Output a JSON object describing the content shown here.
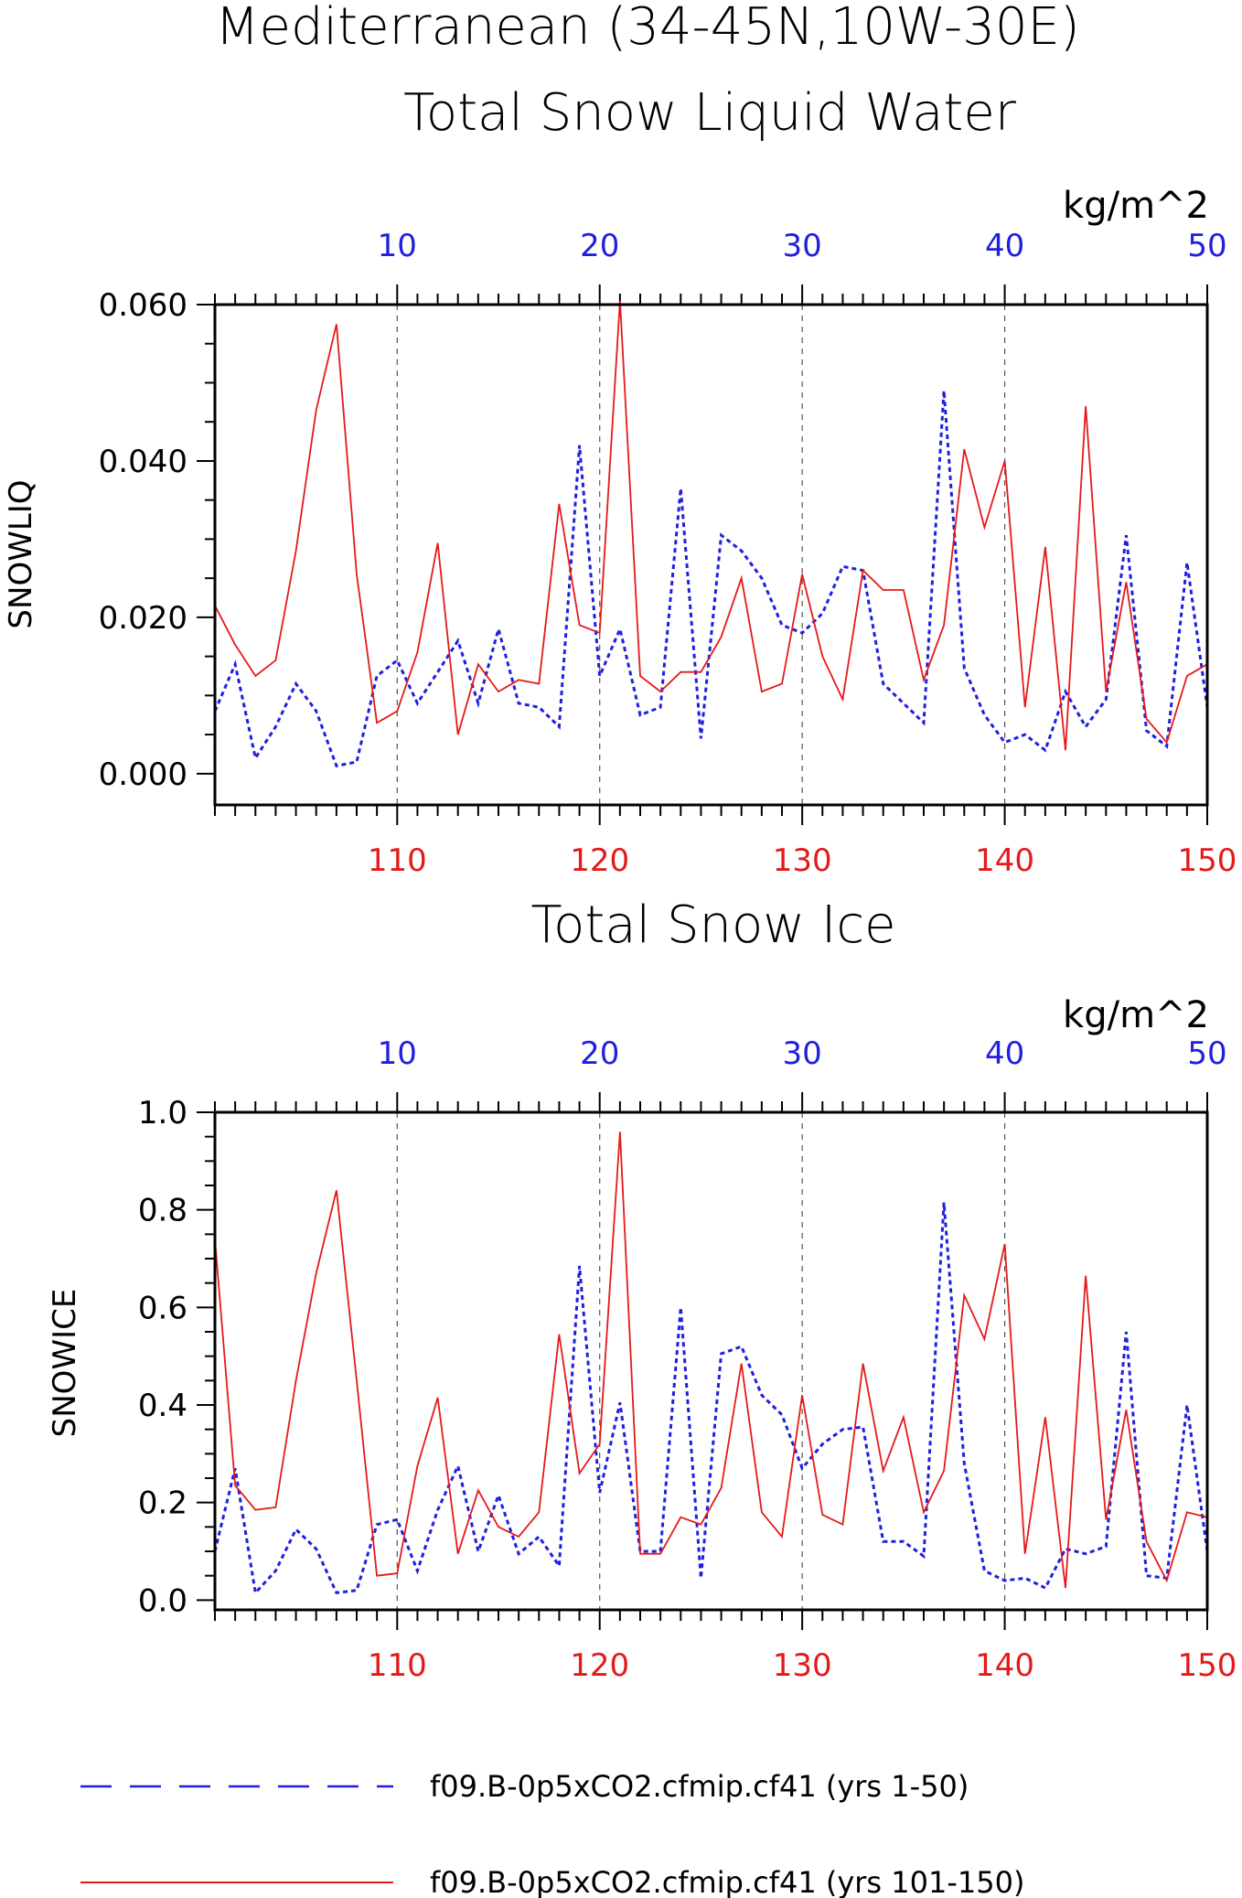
{
  "title": "Mediterranean (34-45N,10W-30E)",
  "colors": {
    "blue": "#1f1fe0",
    "red": "#e51919",
    "axis": "#000000",
    "grid": "#555555"
  },
  "legend": {
    "items": [
      {
        "label": "f09.B-0p5xCO2.cfmip.cf41 (yrs 1-50)",
        "color": "#1f1fe0",
        "style": "dashed"
      },
      {
        "label": "f09.B-0p5xCO2.cfmip.cf41 (yrs 101-150)",
        "color": "#e51919",
        "style": "solid"
      }
    ]
  },
  "chart_data": [
    {
      "type": "line",
      "title": "Total Snow Liquid Water",
      "ylabel": "SNOWLIQ",
      "units": "kg/m^2",
      "ylim": [
        -0.004,
        0.06
      ],
      "yticks": [
        "0.000",
        "0.020",
        "0.040",
        "0.060"
      ],
      "ytick_values": [
        0,
        0.02,
        0.04,
        0.06
      ],
      "x_bottom": {
        "lim": [
          101,
          150
        ],
        "ticks": [
          110,
          120,
          130,
          140,
          150
        ],
        "color": "#e51919"
      },
      "x_top": {
        "lim": [
          1,
          50
        ],
        "ticks": [
          10,
          20,
          30,
          40,
          50
        ],
        "color": "#1f1fe0"
      },
      "series": [
        {
          "name": "f09.B-0p5xCO2.cfmip.cf41 (yrs 1-50)",
          "axis": "top",
          "x": [
            1,
            2,
            3,
            4,
            5,
            6,
            7,
            8,
            9,
            10,
            11,
            12,
            13,
            14,
            15,
            16,
            17,
            18,
            19,
            20,
            21,
            22,
            23,
            24,
            25,
            26,
            27,
            28,
            29,
            30,
            31,
            32,
            33,
            34,
            35,
            36,
            37,
            38,
            39,
            40,
            41,
            42,
            43,
            44,
            45,
            46,
            47,
            48,
            49,
            50
          ],
          "values": [
            0.008,
            0.014,
            0.002,
            0.006,
            0.0115,
            0.008,
            0.001,
            0.0015,
            0.0125,
            0.0145,
            0.009,
            0.013,
            0.017,
            0.009,
            0.0185,
            0.009,
            0.0085,
            0.006,
            0.042,
            0.0125,
            0.0185,
            0.0075,
            0.0085,
            0.0365,
            0.0045,
            0.0305,
            0.0285,
            0.025,
            0.019,
            0.018,
            0.0205,
            0.0265,
            0.026,
            0.0115,
            0.009,
            0.0065,
            0.049,
            0.0135,
            0.0075,
            0.004,
            0.005,
            0.003,
            0.0105,
            0.006,
            0.0095,
            0.0305,
            0.0055,
            0.0035,
            0.027,
            0.0085
          ]
        },
        {
          "name": "f09.B-0p5xCO2.cfmip.cf41 (yrs 101-150)",
          "axis": "bottom",
          "x": [
            101,
            102,
            103,
            104,
            105,
            106,
            107,
            108,
            109,
            110,
            111,
            112,
            113,
            114,
            115,
            116,
            117,
            118,
            119,
            120,
            121,
            122,
            123,
            124,
            125,
            126,
            127,
            128,
            129,
            130,
            131,
            132,
            133,
            134,
            135,
            136,
            137,
            138,
            139,
            140,
            141,
            142,
            143,
            144,
            145,
            146,
            147,
            148,
            149,
            150
          ],
          "values": [
            0.0215,
            0.0165,
            0.0125,
            0.0145,
            0.0285,
            0.0465,
            0.0575,
            0.0255,
            0.0065,
            0.008,
            0.0155,
            0.0295,
            0.005,
            0.014,
            0.0105,
            0.012,
            0.0115,
            0.0345,
            0.019,
            0.018,
            0.0605,
            0.0125,
            0.0105,
            0.013,
            0.013,
            0.0175,
            0.025,
            0.0105,
            0.0115,
            0.0255,
            0.015,
            0.0095,
            0.026,
            0.0235,
            0.0235,
            0.012,
            0.019,
            0.0415,
            0.0315,
            0.04,
            0.0085,
            0.029,
            0.003,
            0.047,
            0.0105,
            0.0245,
            0.007,
            0.004,
            0.0125,
            0.014
          ]
        }
      ]
    },
    {
      "type": "line",
      "title": "Total Snow Ice",
      "ylabel": "SNOWICE",
      "units": "kg/m^2",
      "ylim": [
        -0.02,
        1.0
      ],
      "yticks": [
        "0.0",
        "0.2",
        "0.4",
        "0.6",
        "0.8",
        "1.0"
      ],
      "ytick_values": [
        0,
        0.2,
        0.4,
        0.6,
        0.8,
        1.0
      ],
      "x_bottom": {
        "lim": [
          101,
          150
        ],
        "ticks": [
          110,
          120,
          130,
          140,
          150
        ],
        "color": "#e51919"
      },
      "x_top": {
        "lim": [
          1,
          50
        ],
        "ticks": [
          10,
          20,
          30,
          40,
          50
        ],
        "color": "#1f1fe0"
      },
      "series": [
        {
          "name": "f09.B-0p5xCO2.cfmip.cf41 (yrs 1-50)",
          "axis": "top",
          "x": [
            1,
            2,
            3,
            4,
            5,
            6,
            7,
            8,
            9,
            10,
            11,
            12,
            13,
            14,
            15,
            16,
            17,
            18,
            19,
            20,
            21,
            22,
            23,
            24,
            25,
            26,
            27,
            28,
            29,
            30,
            31,
            32,
            33,
            34,
            35,
            36,
            37,
            38,
            39,
            40,
            41,
            42,
            43,
            44,
            45,
            46,
            47,
            48,
            49,
            50
          ],
          "values": [
            0.1,
            0.27,
            0.015,
            0.06,
            0.145,
            0.105,
            0.015,
            0.02,
            0.155,
            0.165,
            0.06,
            0.185,
            0.275,
            0.1,
            0.215,
            0.095,
            0.13,
            0.07,
            0.685,
            0.22,
            0.405,
            0.1,
            0.1,
            0.6,
            0.045,
            0.505,
            0.52,
            0.42,
            0.38,
            0.27,
            0.32,
            0.35,
            0.355,
            0.12,
            0.12,
            0.09,
            0.815,
            0.28,
            0.06,
            0.04,
            0.045,
            0.025,
            0.105,
            0.095,
            0.11,
            0.55,
            0.05,
            0.045,
            0.4,
            0.1
          ]
        },
        {
          "name": "f09.B-0p5xCO2.cfmip.cf41 (yrs 101-150)",
          "axis": "bottom",
          "x": [
            101,
            102,
            103,
            104,
            105,
            106,
            107,
            108,
            109,
            110,
            111,
            112,
            113,
            114,
            115,
            116,
            117,
            118,
            119,
            120,
            121,
            122,
            123,
            124,
            125,
            126,
            127,
            128,
            129,
            130,
            131,
            132,
            133,
            134,
            135,
            136,
            137,
            138,
            139,
            140,
            141,
            142,
            143,
            144,
            145,
            146,
            147,
            148,
            149,
            150
          ],
          "values": [
            0.74,
            0.235,
            0.185,
            0.19,
            0.45,
            0.67,
            0.84,
            0.45,
            0.05,
            0.055,
            0.275,
            0.415,
            0.095,
            0.225,
            0.15,
            0.13,
            0.18,
            0.545,
            0.26,
            0.32,
            0.96,
            0.095,
            0.095,
            0.17,
            0.155,
            0.23,
            0.485,
            0.18,
            0.13,
            0.42,
            0.175,
            0.155,
            0.485,
            0.265,
            0.375,
            0.18,
            0.265,
            0.625,
            0.535,
            0.73,
            0.095,
            0.375,
            0.025,
            0.665,
            0.165,
            0.39,
            0.12,
            0.04,
            0.18,
            0.17
          ]
        }
      ]
    }
  ]
}
